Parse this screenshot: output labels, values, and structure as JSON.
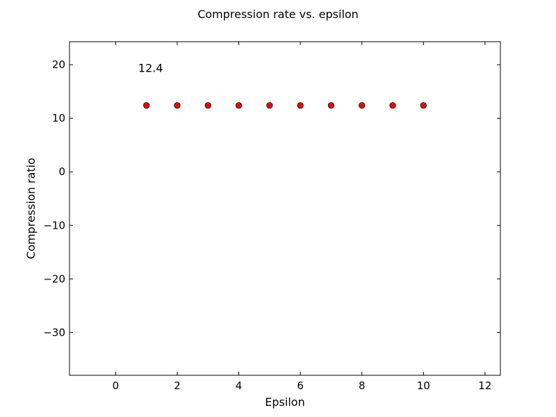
{
  "chart_data": {
    "type": "scatter",
    "title": "Compression rate vs. epsilon",
    "xlabel": "Epsilon",
    "ylabel": "Compression ratio",
    "xlim": [
      -1.5,
      12.5
    ],
    "ylim": [
      -38,
      24.3
    ],
    "xticks": [
      0,
      2,
      4,
      6,
      8,
      10,
      12
    ],
    "yticks": [
      20,
      10,
      0,
      -10,
      -20,
      -30
    ],
    "ytick_labels": [
      "20",
      "10",
      "0",
      "−10",
      "−20",
      "−30"
    ],
    "grid": false,
    "legend": "none",
    "marker_color": "#ff0000",
    "marker_edge_color": "#000000",
    "series": [
      {
        "x": [
          1,
          2,
          3,
          4,
          5,
          6,
          7,
          8,
          9,
          10
        ],
        "y": [
          12.4,
          12.4,
          12.4,
          12.4,
          12.4,
          12.4,
          12.4,
          12.4,
          12.4,
          12.4
        ]
      }
    ],
    "annotations": [
      {
        "text": "12.4",
        "x": 1,
        "y": 12.4
      }
    ]
  }
}
